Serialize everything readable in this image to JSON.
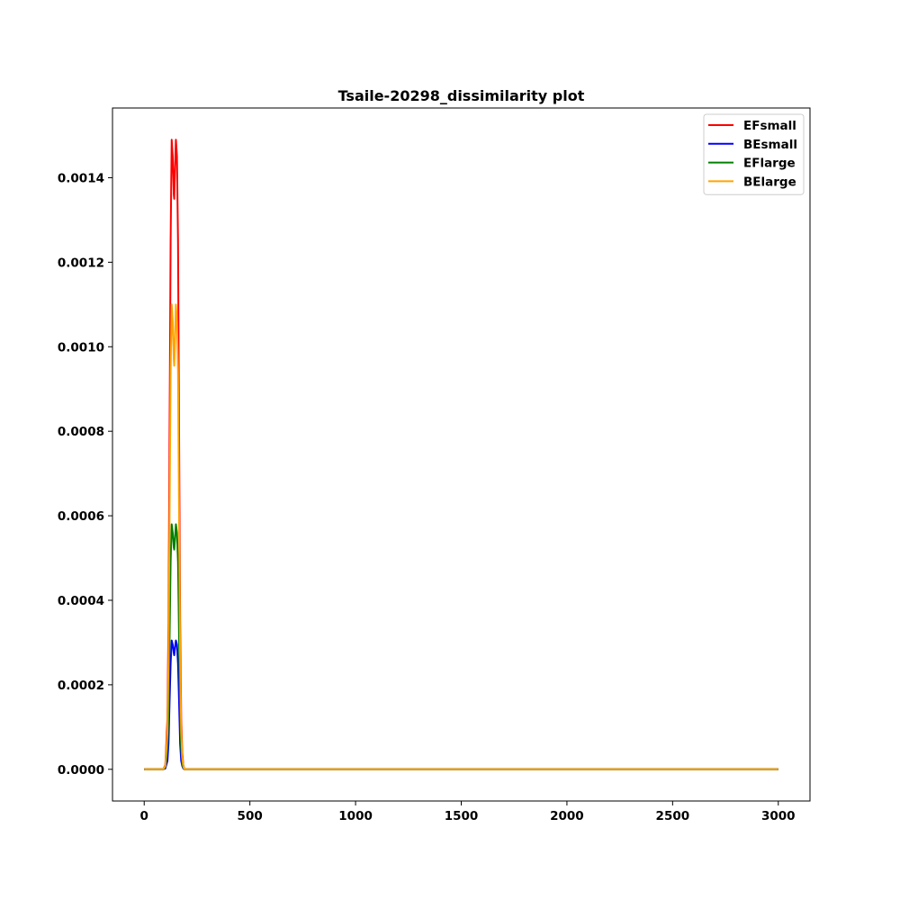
{
  "chart_data": {
    "type": "line",
    "title": "Tsaile-20298_dissimilarity plot",
    "xlabel": "",
    "ylabel": "",
    "xlim": [
      -150,
      3150
    ],
    "ylim": [
      -7.5e-05,
      0.001565
    ],
    "xticks": [
      0,
      500,
      1000,
      1500,
      2000,
      2500,
      3000
    ],
    "xtick_labels": [
      "0",
      "500",
      "1000",
      "1500",
      "2000",
      "2500",
      "3000"
    ],
    "yticks": [
      0,
      0.0002,
      0.0004,
      0.0006,
      0.0008,
      0.001,
      0.0012,
      0.0014
    ],
    "ytick_labels": [
      "0.0000",
      "0.0002",
      "0.0004",
      "0.0006",
      "0.0008",
      "0.0010",
      "0.0012",
      "0.0014"
    ],
    "grid": false,
    "legend_position": "top-right",
    "series": [
      {
        "name": "EFsmall",
        "color": "#ff0000",
        "x": [
          0,
          90,
          100,
          110,
          115,
          120,
          125,
          130,
          135,
          140,
          142,
          145,
          150,
          155,
          160,
          165,
          170,
          175,
          180,
          185,
          190,
          200,
          210,
          3000
        ],
        "y": [
          0,
          0,
          1e-05,
          0.00012,
          0.00035,
          0.0008,
          0.00125,
          0.00149,
          0.00145,
          0.00136,
          0.00135,
          0.00141,
          0.00149,
          0.00145,
          0.00125,
          0.0008,
          0.00035,
          0.00012,
          4e-05,
          1e-05,
          0,
          0,
          0,
          0
        ]
      },
      {
        "name": "BEsmall",
        "color": "#0000ff",
        "x": [
          0,
          90,
          100,
          110,
          115,
          120,
          125,
          130,
          135,
          140,
          142,
          145,
          150,
          155,
          160,
          165,
          170,
          175,
          180,
          185,
          190,
          200,
          210,
          3000
        ],
        "y": [
          0,
          0,
          2e-06,
          2e-05,
          6e-05,
          0.00016,
          0.00025,
          0.000305,
          0.000295,
          0.000275,
          0.00027,
          0.000285,
          0.000305,
          0.000295,
          0.00025,
          0.00016,
          6e-05,
          2e-05,
          8e-06,
          2e-06,
          0,
          0,
          0,
          0
        ]
      },
      {
        "name": "EFlarge",
        "color": "#008000",
        "x": [
          0,
          90,
          100,
          110,
          115,
          120,
          125,
          130,
          135,
          140,
          142,
          145,
          150,
          155,
          160,
          165,
          170,
          175,
          180,
          185,
          190,
          200,
          210,
          3000
        ],
        "y": [
          0,
          0,
          5e-06,
          5e-05,
          0.00014,
          0.00031,
          0.00049,
          0.00058,
          0.00056,
          0.000525,
          0.00052,
          0.00054,
          0.00058,
          0.00056,
          0.00049,
          0.00031,
          0.00014,
          5e-05,
          1.5e-05,
          4e-06,
          0,
          0,
          0,
          0
        ]
      },
      {
        "name": "BElarge",
        "color": "#ffa500",
        "x": [
          0,
          90,
          100,
          110,
          115,
          120,
          125,
          130,
          135,
          140,
          142,
          145,
          150,
          155,
          160,
          165,
          170,
          175,
          180,
          185,
          190,
          200,
          210,
          3000
        ],
        "y": [
          0,
          0,
          8e-06,
          9e-05,
          0.00026,
          0.0006,
          0.00094,
          0.0011,
          0.00106,
          0.00097,
          0.000955,
          0.001,
          0.0011,
          0.00106,
          0.00094,
          0.0006,
          0.00026,
          9e-05,
          3e-05,
          8e-06,
          0,
          0,
          0,
          0
        ]
      }
    ]
  }
}
